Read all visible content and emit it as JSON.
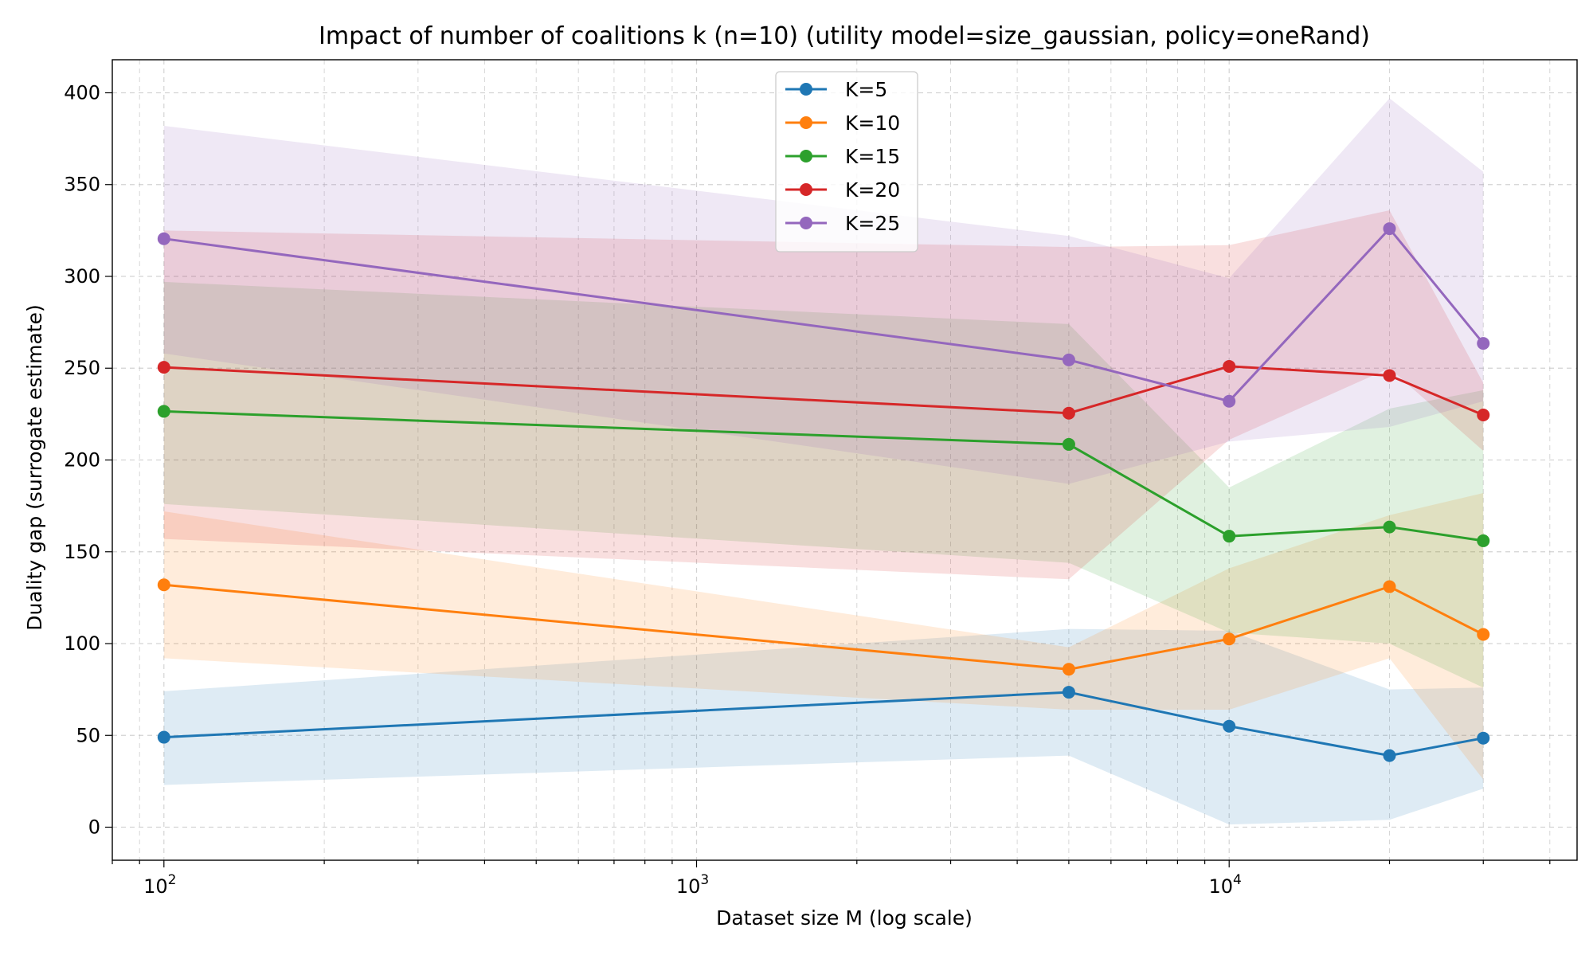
{
  "chart_data": {
    "type": "line",
    "title": "Impact of number of coalitions k (n=10) (utility model=size_gaussian, policy=oneRand)",
    "xlabel": "Dataset size M (log scale)",
    "ylabel": "Duality gap (surrogate estimate)",
    "xscale": "log",
    "xlim": [
      80,
      45000
    ],
    "ylim": [
      -18,
      418
    ],
    "grid": true,
    "legend_loc": "upper center",
    "x": [
      100,
      5000,
      10000,
      20000,
      30000
    ],
    "x_ticks": [
      {
        "value": 100,
        "base": "10",
        "exp": "2"
      },
      {
        "value": 1000,
        "base": "10",
        "exp": "3"
      },
      {
        "value": 10000,
        "base": "10",
        "exp": "4"
      }
    ],
    "y_ticks": [
      {
        "value": 0,
        "label": "0"
      },
      {
        "value": 50,
        "label": "50"
      },
      {
        "value": 100,
        "label": "100"
      },
      {
        "value": 150,
        "label": "150"
      },
      {
        "value": 200,
        "label": "200"
      },
      {
        "value": 250,
        "label": "250"
      },
      {
        "value": 300,
        "label": "300"
      },
      {
        "value": 350,
        "label": "350"
      },
      {
        "value": 400,
        "label": "400"
      }
    ],
    "series": [
      {
        "name": "K=5",
        "color": "#1f77b4",
        "values": [
          49,
          73.5,
          55,
          39,
          48.5
        ],
        "lower": [
          23,
          39,
          1.5,
          4,
          21
        ],
        "upper": [
          74,
          108,
          107,
          75,
          76
        ]
      },
      {
        "name": "K=10",
        "color": "#ff7f0e",
        "values": [
          132,
          86,
          102.5,
          131,
          105
        ],
        "lower": [
          92,
          64,
          64,
          92,
          26
        ],
        "upper": [
          172,
          98,
          141,
          170,
          182
        ]
      },
      {
        "name": "K=15",
        "color": "#2ca02c",
        "values": [
          226.5,
          208.5,
          158.5,
          163.5,
          156
        ],
        "lower": [
          176,
          144,
          106,
          100,
          76
        ],
        "upper": [
          297,
          274,
          185,
          228,
          238
        ]
      },
      {
        "name": "K=20",
        "color": "#d62728",
        "values": [
          250.5,
          225.5,
          251,
          246,
          224.5
        ],
        "lower": [
          157,
          135,
          211,
          250,
          205
        ],
        "upper": [
          325,
          316,
          317,
          336,
          242
        ]
      },
      {
        "name": "K=25",
        "color": "#9467bd",
        "values": [
          320.5,
          254.5,
          232,
          326,
          263.5
        ],
        "lower": [
          258,
          187,
          210,
          218,
          232
        ],
        "upper": [
          382,
          322,
          299,
          397,
          357
        ]
      }
    ]
  }
}
